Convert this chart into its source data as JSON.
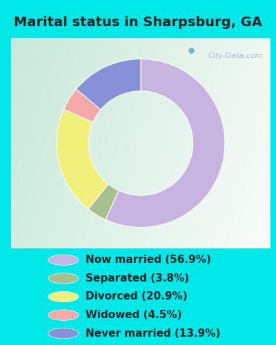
{
  "title": "Marital status in Sharpsburg, GA",
  "slices": [
    56.9,
    3.8,
    20.9,
    4.5,
    13.9
  ],
  "labels": [
    "Now married (56.9%)",
    "Separated (3.8%)",
    "Divorced (20.9%)",
    "Widowed (4.5%)",
    "Never married (13.9%)"
  ],
  "colors": [
    "#c8b4e0",
    "#a8bf90",
    "#f0f07a",
    "#f4a8a8",
    "#8890d8"
  ],
  "bg_outer": "#00e8e8",
  "bg_chart_grad_left": "#d0ede0",
  "bg_chart_grad_right": "#eef8f4",
  "watermark": "City-Data.com",
  "donut_width": 0.38,
  "title_fontsize": 14,
  "legend_fontsize": 11,
  "title_color": "#222222"
}
